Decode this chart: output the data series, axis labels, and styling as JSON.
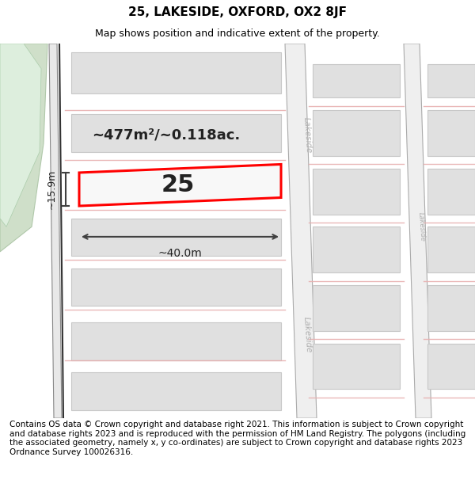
{
  "title": "25, LAKESIDE, OXFORD, OX2 8JF",
  "subtitle": "Map shows position and indicative extent of the property.",
  "footer": "Contains OS data © Crown copyright and database right 2021. This information is subject to Crown copyright and database rights 2023 and is reproduced with the permission of HM Land Registry. The polygons (including the associated geometry, namely x, y co-ordinates) are subject to Crown copyright and database rights 2023 Ordnance Survey 100026316.",
  "area_label": "~477m²/~0.118ac.",
  "width_label": "~40.0m",
  "height_label": "~15.9m",
  "plot_number": "25",
  "bg_color": "#ffffff",
  "map_bg": "#f0f0f0",
  "highlight_color": "#ff0000",
  "dim_line_color": "#404040",
  "block_color": "#e0e0e0",
  "block_edge_color": "#c8c8c8",
  "road_fill": "#f8f8f8",
  "green_fill": "#cfdfc9",
  "green_edge": "#b0c8aa",
  "street_label_color": "#b0b0b0",
  "title_fontsize": 11,
  "subtitle_fontsize": 9,
  "footer_fontsize": 7.5
}
